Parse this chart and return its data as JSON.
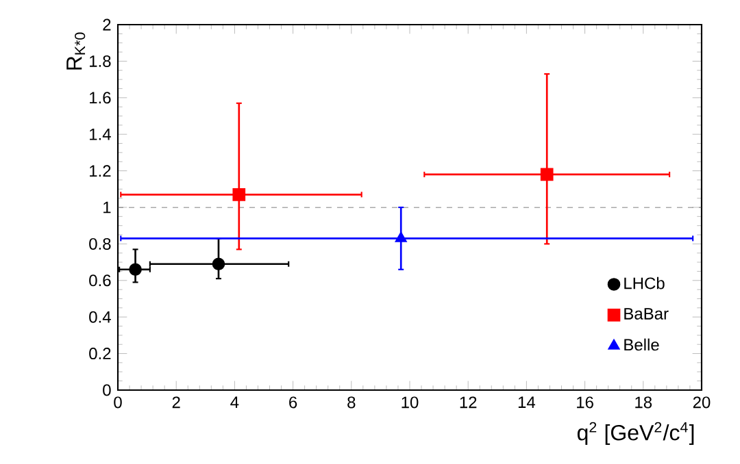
{
  "chart_data": {
    "type": "scatter",
    "xlabel": "q$^{2}$ [GeV$^{2}$/c$^{4}$]",
    "ylabel": "R$_{K*0}$",
    "xlim": [
      0,
      20
    ],
    "ylim": [
      0,
      2
    ],
    "xticks": [
      0,
      2,
      4,
      6,
      8,
      10,
      12,
      14,
      16,
      18,
      20
    ],
    "yticks": [
      0,
      0.2,
      0.4,
      0.6,
      0.8,
      1,
      1.2,
      1.4,
      1.6,
      1.8,
      2
    ],
    "legend": "bottom right",
    "ref_lines": [
      {
        "axis": "y",
        "value": 1,
        "color": "#555555",
        "line_style": "dashed"
      }
    ],
    "series": [
      {
        "name": "LHCb",
        "color": "#000000",
        "marker": "circle",
        "x": [
          0.6,
          3.45
        ],
        "values": [
          0.66,
          0.69
        ],
        "xerrors": [
          [
            0.05,
            1.1
          ],
          [
            1.1,
            5.85
          ]
        ],
        "errors": [
          [
            0.59,
            0.77
          ],
          [
            0.61,
            0.83
          ]
        ]
      },
      {
        "name": "BaBar",
        "color": "#ff0000",
        "marker": "square",
        "x": [
          4.15,
          14.7
        ],
        "values": [
          1.07,
          1.18
        ],
        "xerrors": [
          [
            0.1,
            8.35
          ],
          [
            10.5,
            18.9
          ]
        ],
        "errors": [
          [
            0.77,
            1.57
          ],
          [
            0.8,
            1.73
          ]
        ]
      },
      {
        "name": "Belle",
        "color": "#0000ff",
        "marker": "triangle",
        "x": [
          9.7
        ],
        "values": [
          0.83
        ],
        "xerrors": [
          [
            0.1,
            19.7
          ]
        ],
        "errors": [
          [
            0.66,
            1.0
          ]
        ]
      }
    ]
  }
}
